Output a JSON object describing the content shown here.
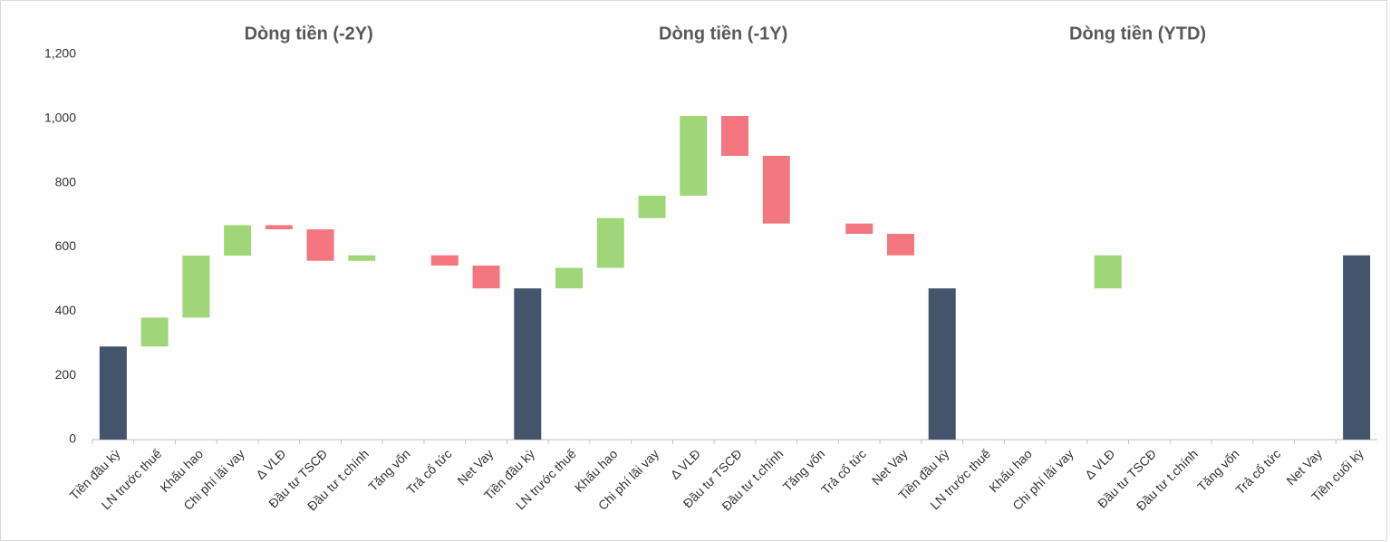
{
  "chart_data": {
    "type": "waterfall",
    "panel_titles": [
      "Dòng tiền (-2Y)",
      "Dòng tiền (-1Y)",
      "Dòng tiền (YTD)"
    ],
    "categories": [
      "Tiền đầu kỳ",
      "LN trước thuế",
      "Khấu hao",
      "Chi phí lãi vay",
      "Δ VLĐ",
      "Đầu tư TSCĐ",
      "Đầu tư t.chính",
      "Tăng vốn",
      "Trả cổ tức",
      "Net Vay",
      "Tiền đầu kỳ",
      "LN trước thuế",
      "Khấu hao",
      "Chi phí lãi vay",
      "Δ VLĐ",
      "Đầu tư TSCĐ",
      "Đầu tư t.chính",
      "Tăng vốn",
      "Trả cổ tức",
      "Net Vay",
      "Tiền đầu kỳ",
      "LN trước thuế",
      "Khấu hao",
      "Chi phí lãi vay",
      "Δ VLĐ",
      "Đầu tư TSCĐ",
      "Đầu tư t.chính",
      "Tăng vốn",
      "Trả cổ tức",
      "Net Vay",
      "Tiền cuối kỳ"
    ],
    "values": [
      290,
      90,
      193,
      95,
      -13,
      -98,
      17,
      0,
      -32,
      -71,
      471,
      64,
      155,
      70,
      248,
      -124,
      -211,
      0,
      -32,
      -67,
      471,
      0,
      0,
      0,
      103,
      0,
      0,
      0,
      0,
      0,
      574
    ],
    "measure": [
      "absolute",
      "relative",
      "relative",
      "relative",
      "relative",
      "relative",
      "relative",
      "relative",
      "relative",
      "relative",
      "absolute",
      "relative",
      "relative",
      "relative",
      "relative",
      "relative",
      "relative",
      "relative",
      "relative",
      "relative",
      "absolute",
      "relative",
      "relative",
      "relative",
      "relative",
      "relative",
      "relative",
      "relative",
      "relative",
      "relative",
      "absolute"
    ],
    "colors": {
      "total": "#44546a",
      "increase": "#9fd677",
      "decrease": "#f4777f"
    },
    "ylim": [
      0,
      1200
    ],
    "yticks": [
      0,
      200,
      400,
      600,
      800,
      {
        "value": 1000,
        "label": "1,000"
      },
      {
        "value": 1200,
        "label": "1,200"
      }
    ],
    "grid": false
  }
}
